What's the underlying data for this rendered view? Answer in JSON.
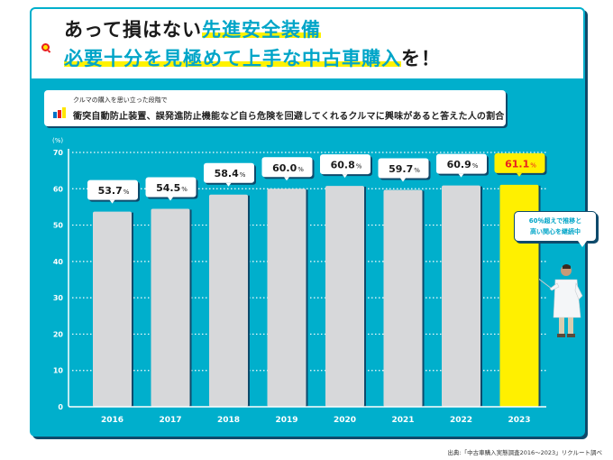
{
  "header": {
    "line1_plain": "あって損はない",
    "line1_highlight": "先進安全装備",
    "line2_highlight": "必要十分を見極めて上手な中古車購入",
    "line2_plain": "を！"
  },
  "subtitle": {
    "small": "クルマの購入を思い立った段階で",
    "main": "衝突自動防止装置、誤発進防止機能など自ら危険を回避してくれるクルマに興味があると答えた人の割合"
  },
  "callout": {
    "line1": "60％超えで推移と",
    "line2": "高い関心を継続中"
  },
  "source": "出典:「中古車購入実態調査2016～2023」リクルート調べ",
  "colors": {
    "background": "#00afcc",
    "bar_default": "#d7d8da",
    "bar_highlight": "#fff000",
    "highlight_label_text": "#e8201e",
    "accent_text": "#00a5c8",
    "shadow": "#0e4a6b"
  },
  "chart_data": {
    "type": "bar",
    "title": "衝突自動防止装置、誤発進防止機能など自ら危険を回避してくれるクルマに興味があると答えた人の割合",
    "xlabel": "",
    "ylabel": "(%)",
    "unit_suffix": "%",
    "ylim": [
      0,
      70
    ],
    "yticks": [
      0,
      10,
      20,
      30,
      40,
      50,
      60,
      70
    ],
    "grid": true,
    "categories": [
      "2016",
      "2017",
      "2018",
      "2019",
      "2020",
      "2021",
      "2022",
      "2023"
    ],
    "values": [
      53.7,
      54.5,
      58.4,
      60.0,
      60.8,
      59.7,
      60.9,
      61.1
    ],
    "labels": [
      "53.7",
      "54.5",
      "58.4",
      "60.0",
      "60.8",
      "59.7",
      "60.9",
      "61.1"
    ],
    "highlight_index": 7
  }
}
